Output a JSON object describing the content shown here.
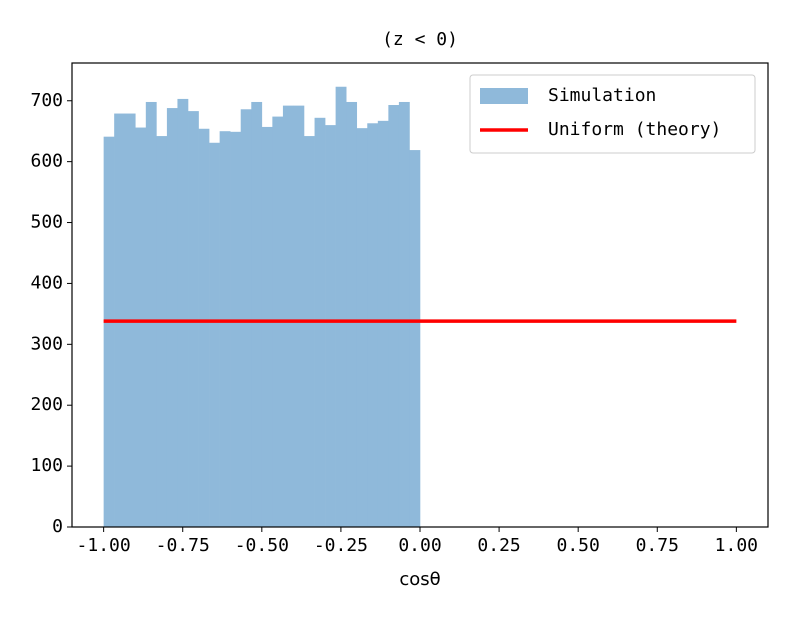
{
  "chart_data": {
    "type": "histogram",
    "title": "(z < 0)",
    "x_label": "cosθ",
    "series": [
      {
        "name": "Simulation",
        "color": "#8fb9da",
        "type": "histogram",
        "bins": [
          -1,
          -0.9667,
          -0.9333,
          -0.9,
          -0.8667,
          -0.8333,
          -0.8,
          -0.7667,
          -0.7333,
          -0.7,
          -0.6667,
          -0.6333,
          -0.6,
          -0.5667,
          -0.5333,
          -0.5,
          -0.4667,
          -0.4333,
          -0.4,
          -0.3667,
          -0.3333,
          -0.3,
          -0.2667,
          -0.2333,
          -0.2,
          -0.1667,
          -0.1333,
          -0.1,
          -0.0667,
          -0.0333,
          0
        ],
        "values": [
          641,
          679,
          679,
          656,
          698,
          642,
          688,
          703,
          683,
          654,
          631,
          650,
          649,
          686,
          698,
          657,
          674,
          692,
          692,
          642,
          672,
          660,
          723,
          698,
          655,
          663,
          667,
          693,
          698,
          619
        ]
      },
      {
        "name": "Uniform (theory)",
        "color": "#ff0000",
        "type": "line",
        "x": [
          -1,
          1
        ],
        "values": [
          338,
          338
        ]
      }
    ],
    "xlim": [
      -1.1,
      1.1
    ],
    "xticks": [
      {
        "value": -1,
        "label": "-1.00"
      },
      {
        "value": -0.75,
        "label": "-0.75"
      },
      {
        "value": -0.5,
        "label": "-0.50"
      },
      {
        "value": -0.25,
        "label": "-0.25"
      },
      {
        "value": 0,
        "label": "0.00"
      },
      {
        "value": 0.25,
        "label": "0.25"
      },
      {
        "value": 0.5,
        "label": "0.50"
      },
      {
        "value": 0.75,
        "label": "0.75"
      },
      {
        "value": 1,
        "label": "1.00"
      }
    ],
    "ylim": [
      0,
      762
    ],
    "yticks": [
      0,
      100,
      200,
      300,
      400,
      500,
      600,
      700
    ],
    "legend": "upper right"
  }
}
